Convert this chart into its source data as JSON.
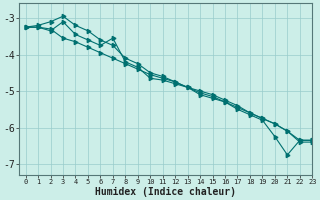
{
  "xlabel": "Humidex (Indice chaleur)",
  "bg_color": "#cceee8",
  "line_color": "#007070",
  "grid_color": "#99cccc",
  "xlim": [
    -0.5,
    23
  ],
  "ylim": [
    -7.3,
    -2.6
  ],
  "yticks": [
    -7,
    -6,
    -5,
    -4,
    -3
  ],
  "xticks": [
    0,
    1,
    2,
    3,
    4,
    5,
    6,
    7,
    8,
    9,
    10,
    11,
    12,
    13,
    14,
    15,
    16,
    17,
    18,
    19,
    20,
    21,
    22,
    23
  ],
  "series1_x": [
    0,
    1,
    2,
    3,
    4,
    5,
    6,
    7,
    8,
    9,
    10,
    11,
    12,
    13,
    14,
    15,
    16,
    17,
    18,
    19,
    20,
    21,
    22,
    23
  ],
  "series1_y": [
    -3.25,
    -3.25,
    -3.3,
    -3.55,
    -3.65,
    -3.8,
    -3.95,
    -4.1,
    -4.25,
    -4.4,
    -4.55,
    -4.65,
    -4.75,
    -4.9,
    -5.05,
    -5.15,
    -5.3,
    -5.45,
    -5.6,
    -5.75,
    -5.9,
    -6.1,
    -6.4,
    -6.4
  ],
  "series2_x": [
    0,
    1,
    2,
    3,
    4,
    5,
    6,
    7,
    8,
    9,
    10,
    11,
    12,
    13,
    14,
    15,
    16,
    17,
    18,
    19,
    20,
    21,
    22,
    23
  ],
  "series2_y": [
    -3.25,
    -3.2,
    -3.1,
    -2.95,
    -3.2,
    -3.35,
    -3.6,
    -3.75,
    -4.1,
    -4.25,
    -4.5,
    -4.6,
    -4.75,
    -4.9,
    -5.0,
    -5.1,
    -5.25,
    -5.4,
    -5.6,
    -5.75,
    -5.9,
    -6.1,
    -6.35,
    -6.35
  ],
  "series3_x": [
    0,
    1,
    2,
    3,
    4,
    5,
    6,
    7,
    8,
    9,
    10,
    11,
    12,
    13,
    14,
    15,
    16,
    17,
    18,
    19,
    20,
    21,
    22,
    23
  ],
  "series3_y": [
    -3.25,
    -3.25,
    -3.35,
    -3.1,
    -3.45,
    -3.6,
    -3.75,
    -3.55,
    -4.2,
    -4.35,
    -4.65,
    -4.7,
    -4.8,
    -4.9,
    -5.1,
    -5.2,
    -5.3,
    -5.5,
    -5.65,
    -5.8,
    -6.25,
    -6.75,
    -6.35,
    -6.35
  ]
}
